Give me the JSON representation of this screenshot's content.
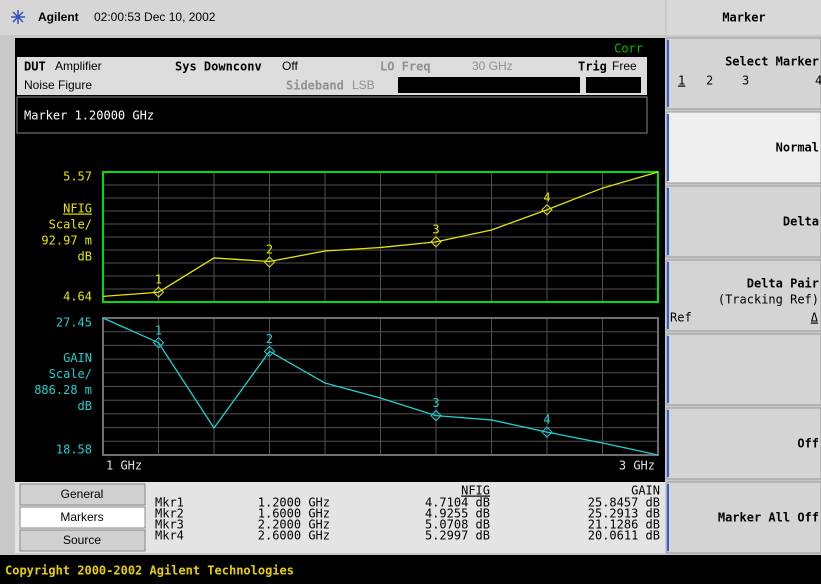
{
  "header": {
    "brand": "Agilent",
    "datetime": "02:00:53  Dec 10, 2002"
  },
  "menu_title": "Marker",
  "status": {
    "corr": "Corr",
    "row1": [
      {
        "label": "DUT",
        "value": "Amplifier"
      },
      {
        "label": "Sys Downconv",
        "value": "Off"
      },
      {
        "label": "LO Freq",
        "value": "30 GHz"
      },
      {
        "label": "Trig",
        "value": "Free"
      }
    ],
    "row2": [
      {
        "label": "Noise Figure"
      },
      {
        "label": "Sideband",
        "value": "LSB"
      }
    ]
  },
  "marker_readout": "Marker 1.20000 GHz",
  "chart_data": [
    {
      "type": "line",
      "x": [
        1.0,
        1.2,
        1.4,
        1.6,
        1.8,
        2.0,
        2.2,
        2.4,
        2.6,
        2.8,
        3.0
      ],
      "series": [
        {
          "name": "NFIG",
          "color": "#e6e600",
          "values": [
            4.68,
            4.71,
            4.955,
            4.93,
            5.005,
            5.03,
            5.07,
            5.155,
            5.3,
            5.455,
            5.57
          ]
        }
      ],
      "xlim": [
        1,
        3
      ],
      "ylim": [
        4.64,
        5.57
      ],
      "yticks": [
        4.64,
        5.57
      ],
      "scale": "Scale/",
      "scale_value": "92.97 m",
      "unit": "dB",
      "frame_color": "#00e000",
      "markers": [
        {
          "label": "1",
          "x": 1.2,
          "y": 4.7104
        },
        {
          "label": "2",
          "x": 1.6,
          "y": 4.9255
        },
        {
          "label": "3",
          "x": 2.2,
          "y": 5.0708
        },
        {
          "label": "4",
          "x": 2.6,
          "y": 5.2997
        }
      ]
    },
    {
      "type": "line",
      "x": [
        1.0,
        1.2,
        1.4,
        1.6,
        1.8,
        2.0,
        2.2,
        2.4,
        2.6,
        2.8,
        3.0
      ],
      "series": [
        {
          "name": "GAIN",
          "color": "#20d0d0",
          "values": [
            27.45,
            25.85,
            20.33,
            25.29,
            23.24,
            22.27,
            21.13,
            20.85,
            20.06,
            19.36,
            18.58
          ]
        }
      ],
      "xlim": [
        1,
        3
      ],
      "xticks": [
        {
          "value": 1,
          "label": "1 GHz"
        },
        {
          "value": 3,
          "label": "3 GHz"
        }
      ],
      "ylim": [
        18.58,
        27.45
      ],
      "yticks": [
        18.58,
        27.45
      ],
      "scale": "Scale/",
      "scale_value": "886.28 m",
      "unit": "dB",
      "frame_color": "#707070",
      "markers": [
        {
          "label": "1",
          "x": 1.2,
          "y": 25.8457
        },
        {
          "label": "2",
          "x": 1.6,
          "y": 25.2913
        },
        {
          "label": "3",
          "x": 2.2,
          "y": 21.1286
        },
        {
          "label": "4",
          "x": 2.6,
          "y": 20.0611
        }
      ]
    }
  ],
  "tabs": [
    "General",
    "Markers",
    "Source"
  ],
  "marker_table": {
    "header": [
      "NFIG",
      "GAIN"
    ],
    "rows": [
      [
        "Mkr1",
        "1.2000  GHz",
        "4.7104  dB",
        "25.8457  dB"
      ],
      [
        "Mkr2",
        "1.6000  GHz",
        "4.9255  dB",
        "25.2913  dB"
      ],
      [
        "Mkr3",
        "2.2000  GHz",
        "5.0708  dB",
        "21.1286  dB"
      ],
      [
        "Mkr4",
        "2.6000  GHz",
        "5.2997  dB",
        "20.0611  dB"
      ]
    ]
  },
  "softkeys": [
    {
      "label": "Select Marker",
      "options": [
        "1",
        "2",
        "3",
        "4"
      ]
    },
    {
      "label": "Normal"
    },
    {
      "label": "Delta"
    },
    {
      "label": "Delta Pair",
      "sub": "(Tracking Ref)",
      "options": [
        "Ref",
        "Δ"
      ]
    },
    {
      "label": "Off"
    },
    {
      "label": "Marker All Off"
    }
  ],
  "footer": "Copyright 2000-2002 Agilent Technologies"
}
